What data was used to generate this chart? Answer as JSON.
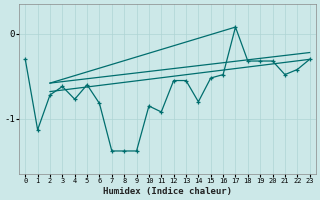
{
  "xlabel": "Humidex (Indice chaleur)",
  "background_color": "#cce8e8",
  "grid_color": "#afd4d4",
  "line_color": "#006e6e",
  "x": [
    0,
    1,
    2,
    3,
    4,
    5,
    6,
    7,
    8,
    9,
    10,
    11,
    12,
    13,
    14,
    15,
    16,
    17,
    18,
    19,
    20,
    21,
    22,
    23
  ],
  "y_jagged": [
    -0.3,
    -1.13,
    -0.72,
    -0.62,
    -0.77,
    -0.6,
    -0.82,
    -1.38,
    -1.38,
    -1.38,
    -0.85,
    -0.92,
    -0.55,
    -0.55,
    -0.8,
    -0.52,
    -0.48,
    0.08,
    -0.32,
    -0.32,
    -0.32,
    -0.48,
    -0.42,
    -0.3
  ],
  "upper_line_x": [
    2,
    17
  ],
  "upper_line_y": [
    -0.58,
    0.08
  ],
  "mid_upper_line_x": [
    2,
    23
  ],
  "mid_upper_line_y": [
    -0.58,
    -0.22
  ],
  "mid_lower_line_x": [
    2,
    23
  ],
  "mid_lower_line_y": [
    -0.68,
    -0.3
  ],
  "ylim": [
    -1.65,
    0.35
  ],
  "xlim": [
    -0.5,
    23.5
  ],
  "yticks": [
    0,
    -1
  ],
  "xticks": [
    0,
    1,
    2,
    3,
    4,
    5,
    6,
    7,
    8,
    9,
    10,
    11,
    12,
    13,
    14,
    15,
    16,
    17,
    18,
    19,
    20,
    21,
    22,
    23
  ],
  "figsize": [
    3.2,
    2.0
  ],
  "dpi": 100
}
